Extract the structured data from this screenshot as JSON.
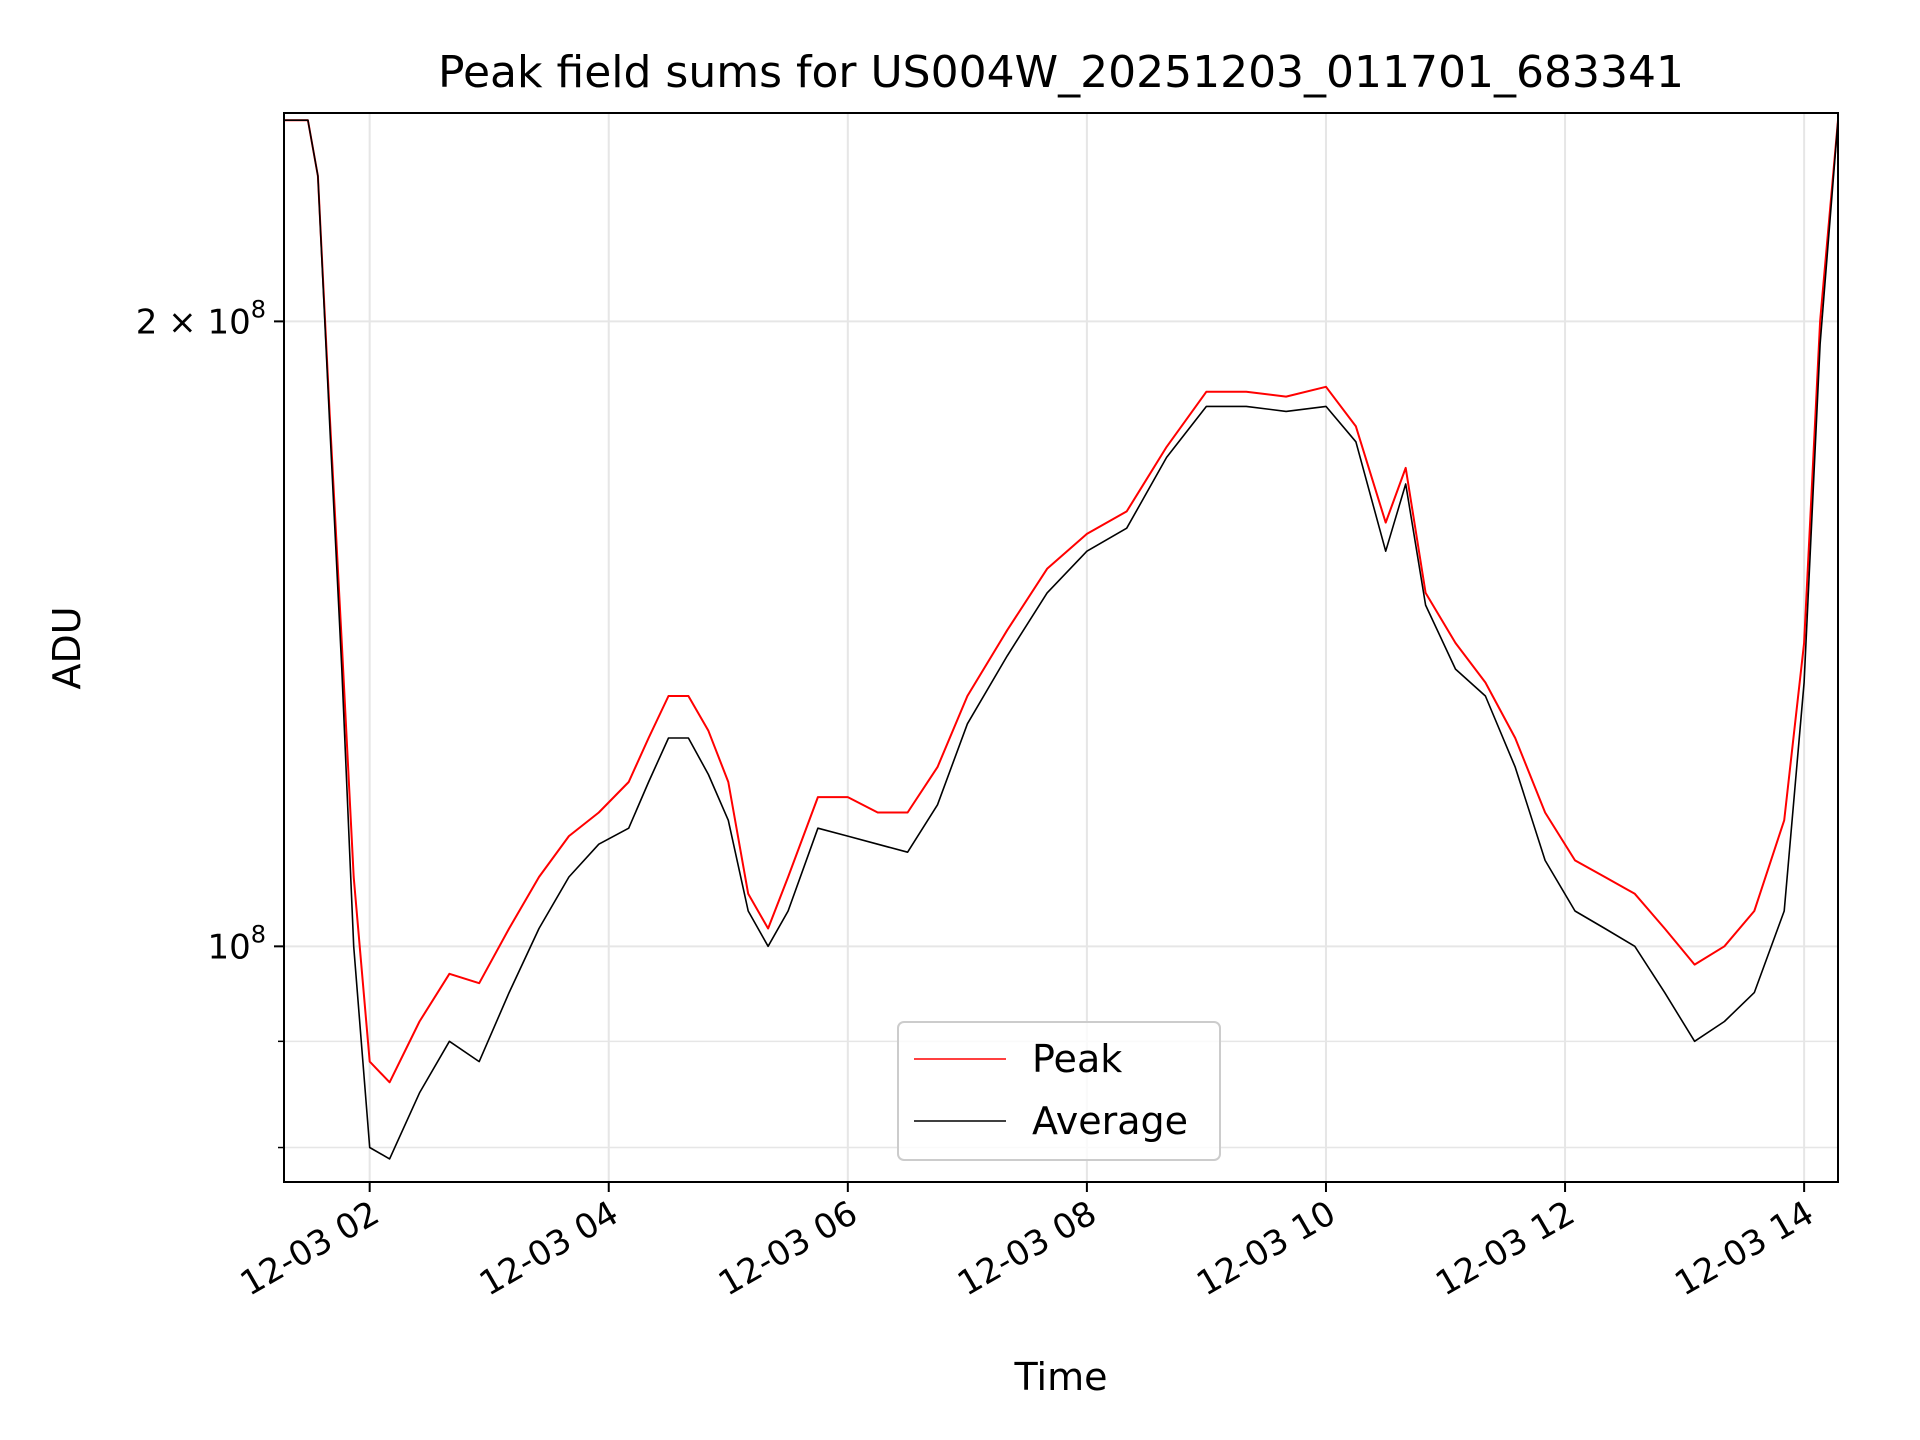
{
  "chart_data": {
    "type": "line",
    "title": "Peak field sums for US004W_20251203_011701_683341",
    "xlabel": "Time",
    "ylabel": "ADU",
    "yscale": "log",
    "xlim": [
      "2025-12-03 01:17",
      "2025-12-03 14:17"
    ],
    "ylim": [
      77000000,
      252000000
    ],
    "x_ticks": [
      {
        "value": "2025-12-03 02:00",
        "label": "12-03 02"
      },
      {
        "value": "2025-12-03 04:00",
        "label": "12-03 04"
      },
      {
        "value": "2025-12-03 06:00",
        "label": "12-03 06"
      },
      {
        "value": "2025-12-03 08:00",
        "label": "12-03 08"
      },
      {
        "value": "2025-12-03 10:00",
        "label": "12-03 10"
      },
      {
        "value": "2025-12-03 12:00",
        "label": "12-03 12"
      },
      {
        "value": "2025-12-03 14:00",
        "label": "12-03 14"
      }
    ],
    "y_major_ticks": [
      {
        "value": 100000000,
        "mantissa": "",
        "base": "10",
        "exp": "8"
      },
      {
        "value": 200000000,
        "mantissa": "2 × ",
        "base": "10",
        "exp": "8"
      }
    ],
    "y_minor_ticks": [
      80000000,
      90000000
    ],
    "grid": true,
    "legend_position": "lower-center",
    "series": [
      {
        "name": "Peak",
        "color": "#ff0000",
        "points": [
          [
            "2025-12-03 01:17",
            250000000
          ],
          [
            "2025-12-03 01:29",
            250000000
          ],
          [
            "2025-12-03 01:34",
            235000000
          ],
          [
            "2025-12-03 01:40",
            180000000
          ],
          [
            "2025-12-03 01:46",
            140000000
          ],
          [
            "2025-12-03 01:52",
            108000000
          ],
          [
            "2025-12-03 02:00",
            88000000
          ],
          [
            "2025-12-03 02:10",
            86000000
          ],
          [
            "2025-12-03 02:25",
            92000000
          ],
          [
            "2025-12-03 02:40",
            97000000
          ],
          [
            "2025-12-03 02:55",
            96000000
          ],
          [
            "2025-12-03 03:10",
            102000000
          ],
          [
            "2025-12-03 03:25",
            108000000
          ],
          [
            "2025-12-03 03:40",
            113000000
          ],
          [
            "2025-12-03 03:55",
            116000000
          ],
          [
            "2025-12-03 04:10",
            120000000
          ],
          [
            "2025-12-03 04:20",
            126000000
          ],
          [
            "2025-12-03 04:30",
            132000000
          ],
          [
            "2025-12-03 04:40",
            132000000
          ],
          [
            "2025-12-03 04:50",
            127000000
          ],
          [
            "2025-12-03 05:00",
            120000000
          ],
          [
            "2025-12-03 05:10",
            106000000
          ],
          [
            "2025-12-03 05:20",
            102000000
          ],
          [
            "2025-12-03 05:30",
            108000000
          ],
          [
            "2025-12-03 05:45",
            118000000
          ],
          [
            "2025-12-03 06:00",
            118000000
          ],
          [
            "2025-12-03 06:15",
            116000000
          ],
          [
            "2025-12-03 06:30",
            116000000
          ],
          [
            "2025-12-03 06:45",
            122000000
          ],
          [
            "2025-12-03 07:00",
            132000000
          ],
          [
            "2025-12-03 07:20",
            142000000
          ],
          [
            "2025-12-03 07:40",
            152000000
          ],
          [
            "2025-12-03 08:00",
            158000000
          ],
          [
            "2025-12-03 08:20",
            162000000
          ],
          [
            "2025-12-03 08:40",
            174000000
          ],
          [
            "2025-12-03 09:00",
            185000000
          ],
          [
            "2025-12-03 09:20",
            185000000
          ],
          [
            "2025-12-03 09:40",
            184000000
          ],
          [
            "2025-12-03 10:00",
            186000000
          ],
          [
            "2025-12-03 10:15",
            178000000
          ],
          [
            "2025-12-03 10:30",
            160000000
          ],
          [
            "2025-12-03 10:40",
            170000000
          ],
          [
            "2025-12-03 10:50",
            148000000
          ],
          [
            "2025-12-03 11:05",
            140000000
          ],
          [
            "2025-12-03 11:20",
            134000000
          ],
          [
            "2025-12-03 11:35",
            126000000
          ],
          [
            "2025-12-03 11:50",
            116000000
          ],
          [
            "2025-12-03 12:05",
            110000000
          ],
          [
            "2025-12-03 12:20",
            108000000
          ],
          [
            "2025-12-03 12:35",
            106000000
          ],
          [
            "2025-12-03 12:50",
            102000000
          ],
          [
            "2025-12-03 13:05",
            98000000
          ],
          [
            "2025-12-03 13:20",
            100000000
          ],
          [
            "2025-12-03 13:35",
            104000000
          ],
          [
            "2025-12-03 13:50",
            115000000
          ],
          [
            "2025-12-03 14:00",
            140000000
          ],
          [
            "2025-12-03 14:08",
            200000000
          ],
          [
            "2025-12-03 14:17",
            250000000
          ]
        ]
      },
      {
        "name": "Average",
        "color": "#000000",
        "points": [
          [
            "2025-12-03 01:17",
            250000000
          ],
          [
            "2025-12-03 01:29",
            250000000
          ],
          [
            "2025-12-03 01:34",
            235000000
          ],
          [
            "2025-12-03 01:40",
            178000000
          ],
          [
            "2025-12-03 01:46",
            136000000
          ],
          [
            "2025-12-03 01:52",
            100000000
          ],
          [
            "2025-12-03 02:00",
            80000000
          ],
          [
            "2025-12-03 02:10",
            79000000
          ],
          [
            "2025-12-03 02:25",
            85000000
          ],
          [
            "2025-12-03 02:40",
            90000000
          ],
          [
            "2025-12-03 02:55",
            88000000
          ],
          [
            "2025-12-03 03:10",
            95000000
          ],
          [
            "2025-12-03 03:25",
            102000000
          ],
          [
            "2025-12-03 03:40",
            108000000
          ],
          [
            "2025-12-03 03:55",
            112000000
          ],
          [
            "2025-12-03 04:10",
            114000000
          ],
          [
            "2025-12-03 04:20",
            120000000
          ],
          [
            "2025-12-03 04:30",
            126000000
          ],
          [
            "2025-12-03 04:40",
            126000000
          ],
          [
            "2025-12-03 04:50",
            121000000
          ],
          [
            "2025-12-03 05:00",
            115000000
          ],
          [
            "2025-12-03 05:10",
            104000000
          ],
          [
            "2025-12-03 05:20",
            100000000
          ],
          [
            "2025-12-03 05:30",
            104000000
          ],
          [
            "2025-12-03 05:45",
            114000000
          ],
          [
            "2025-12-03 06:00",
            113000000
          ],
          [
            "2025-12-03 06:15",
            112000000
          ],
          [
            "2025-12-03 06:30",
            111000000
          ],
          [
            "2025-12-03 06:45",
            117000000
          ],
          [
            "2025-12-03 07:00",
            128000000
          ],
          [
            "2025-12-03 07:20",
            138000000
          ],
          [
            "2025-12-03 07:40",
            148000000
          ],
          [
            "2025-12-03 08:00",
            155000000
          ],
          [
            "2025-12-03 08:20",
            159000000
          ],
          [
            "2025-12-03 08:40",
            172000000
          ],
          [
            "2025-12-03 09:00",
            182000000
          ],
          [
            "2025-12-03 09:20",
            182000000
          ],
          [
            "2025-12-03 09:40",
            181000000
          ],
          [
            "2025-12-03 10:00",
            182000000
          ],
          [
            "2025-12-03 10:15",
            175000000
          ],
          [
            "2025-12-03 10:30",
            155000000
          ],
          [
            "2025-12-03 10:40",
            167000000
          ],
          [
            "2025-12-03 10:50",
            146000000
          ],
          [
            "2025-12-03 11:05",
            136000000
          ],
          [
            "2025-12-03 11:20",
            132000000
          ],
          [
            "2025-12-03 11:35",
            122000000
          ],
          [
            "2025-12-03 11:50",
            110000000
          ],
          [
            "2025-12-03 12:05",
            104000000
          ],
          [
            "2025-12-03 12:20",
            102000000
          ],
          [
            "2025-12-03 12:35",
            100000000
          ],
          [
            "2025-12-03 12:50",
            95000000
          ],
          [
            "2025-12-03 13:05",
            90000000
          ],
          [
            "2025-12-03 13:20",
            92000000
          ],
          [
            "2025-12-03 13:35",
            95000000
          ],
          [
            "2025-12-03 13:50",
            104000000
          ],
          [
            "2025-12-03 14:00",
            134000000
          ],
          [
            "2025-12-03 14:08",
            195000000
          ],
          [
            "2025-12-03 14:17",
            250000000
          ]
        ]
      }
    ]
  }
}
